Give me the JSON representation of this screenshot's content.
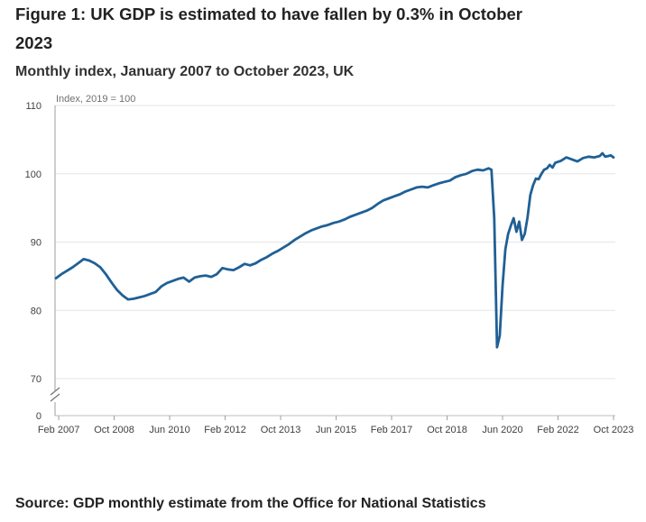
{
  "header": {
    "title": "Figure 1: UK GDP is estimated to have fallen by 0.3% in October 2023",
    "subtitle": "Monthly index, January 2007 to October 2023, UK"
  },
  "footer": {
    "source": "Source: GDP monthly estimate from the Office for National Statistics"
  },
  "chart_data": {
    "type": "line",
    "title": "Figure 1: UK GDP is estimated to have fallen by 0.3% in October 2023",
    "subtitle": "Monthly index, January 2007 to October 2023, UK",
    "ylabel": "Index, 2019 = 100",
    "xlabel": "",
    "y_ticks": [
      0,
      70,
      80,
      90,
      100,
      110
    ],
    "ylim": [
      70,
      110
    ],
    "y_axis_break": true,
    "x_start": "Jan 2007",
    "x_end": "Oct 2023",
    "x_ticks": [
      {
        "label": "Feb 2007",
        "date": "2007-02"
      },
      {
        "label": "Oct 2008",
        "date": "2008-10"
      },
      {
        "label": "Jun 2010",
        "date": "2010-06"
      },
      {
        "label": "Feb 2012",
        "date": "2012-02"
      },
      {
        "label": "Oct 2013",
        "date": "2013-10"
      },
      {
        "label": "Jun 2015",
        "date": "2015-06"
      },
      {
        "label": "Feb 2017",
        "date": "2017-02"
      },
      {
        "label": "Oct 2018",
        "date": "2018-10"
      },
      {
        "label": "Jun 2020",
        "date": "2020-06"
      },
      {
        "label": "Feb 2022",
        "date": "2022-02"
      },
      {
        "label": "Oct 2023",
        "date": "2023-10"
      }
    ],
    "grid": true,
    "legend": "none",
    "series": [
      {
        "color": "#206095",
        "points": [
          {
            "x": "2007-01",
            "y": 84.7
          },
          {
            "x": "2007-03",
            "y": 85.3
          },
          {
            "x": "2007-05",
            "y": 85.8
          },
          {
            "x": "2007-07",
            "y": 86.3
          },
          {
            "x": "2007-09",
            "y": 86.9
          },
          {
            "x": "2007-11",
            "y": 87.5
          },
          {
            "x": "2008-01",
            "y": 87.3
          },
          {
            "x": "2008-03",
            "y": 86.9
          },
          {
            "x": "2008-05",
            "y": 86.3
          },
          {
            "x": "2008-07",
            "y": 85.3
          },
          {
            "x": "2008-09",
            "y": 84.1
          },
          {
            "x": "2008-11",
            "y": 83.0
          },
          {
            "x": "2009-01",
            "y": 82.2
          },
          {
            "x": "2009-03",
            "y": 81.6
          },
          {
            "x": "2009-05",
            "y": 81.7
          },
          {
            "x": "2009-07",
            "y": 81.9
          },
          {
            "x": "2009-09",
            "y": 82.1
          },
          {
            "x": "2009-11",
            "y": 82.4
          },
          {
            "x": "2010-01",
            "y": 82.7
          },
          {
            "x": "2010-03",
            "y": 83.5
          },
          {
            "x": "2010-05",
            "y": 84.0
          },
          {
            "x": "2010-07",
            "y": 84.3
          },
          {
            "x": "2010-09",
            "y": 84.6
          },
          {
            "x": "2010-11",
            "y": 84.8
          },
          {
            "x": "2011-01",
            "y": 84.2
          },
          {
            "x": "2011-03",
            "y": 84.8
          },
          {
            "x": "2011-05",
            "y": 85.0
          },
          {
            "x": "2011-07",
            "y": 85.1
          },
          {
            "x": "2011-09",
            "y": 84.9
          },
          {
            "x": "2011-11",
            "y": 85.3
          },
          {
            "x": "2012-01",
            "y": 86.2
          },
          {
            "x": "2012-03",
            "y": 86.0
          },
          {
            "x": "2012-05",
            "y": 85.9
          },
          {
            "x": "2012-07",
            "y": 86.3
          },
          {
            "x": "2012-09",
            "y": 86.8
          },
          {
            "x": "2012-11",
            "y": 86.6
          },
          {
            "x": "2013-01",
            "y": 86.9
          },
          {
            "x": "2013-03",
            "y": 87.4
          },
          {
            "x": "2013-05",
            "y": 87.8
          },
          {
            "x": "2013-07",
            "y": 88.3
          },
          {
            "x": "2013-09",
            "y": 88.7
          },
          {
            "x": "2013-11",
            "y": 89.2
          },
          {
            "x": "2014-01",
            "y": 89.7
          },
          {
            "x": "2014-03",
            "y": 90.3
          },
          {
            "x": "2014-05",
            "y": 90.8
          },
          {
            "x": "2014-07",
            "y": 91.3
          },
          {
            "x": "2014-09",
            "y": 91.7
          },
          {
            "x": "2014-11",
            "y": 92.0
          },
          {
            "x": "2015-01",
            "y": 92.3
          },
          {
            "x": "2015-03",
            "y": 92.5
          },
          {
            "x": "2015-05",
            "y": 92.8
          },
          {
            "x": "2015-07",
            "y": 93.0
          },
          {
            "x": "2015-09",
            "y": 93.3
          },
          {
            "x": "2015-11",
            "y": 93.7
          },
          {
            "x": "2016-01",
            "y": 94.0
          },
          {
            "x": "2016-03",
            "y": 94.3
          },
          {
            "x": "2016-05",
            "y": 94.6
          },
          {
            "x": "2016-07",
            "y": 95.0
          },
          {
            "x": "2016-09",
            "y": 95.6
          },
          {
            "x": "2016-11",
            "y": 96.1
          },
          {
            "x": "2017-01",
            "y": 96.4
          },
          {
            "x": "2017-03",
            "y": 96.7
          },
          {
            "x": "2017-05",
            "y": 97.0
          },
          {
            "x": "2017-07",
            "y": 97.4
          },
          {
            "x": "2017-09",
            "y": 97.7
          },
          {
            "x": "2017-11",
            "y": 98.0
          },
          {
            "x": "2018-01",
            "y": 98.1
          },
          {
            "x": "2018-03",
            "y": 98.0
          },
          {
            "x": "2018-05",
            "y": 98.3
          },
          {
            "x": "2018-07",
            "y": 98.6
          },
          {
            "x": "2018-09",
            "y": 98.8
          },
          {
            "x": "2018-11",
            "y": 99.0
          },
          {
            "x": "2019-01",
            "y": 99.5
          },
          {
            "x": "2019-03",
            "y": 99.8
          },
          {
            "x": "2019-05",
            "y": 100.0
          },
          {
            "x": "2019-07",
            "y": 100.4
          },
          {
            "x": "2019-09",
            "y": 100.6
          },
          {
            "x": "2019-11",
            "y": 100.5
          },
          {
            "x": "2020-01",
            "y": 100.8
          },
          {
            "x": "2020-02",
            "y": 100.6
          },
          {
            "x": "2020-03",
            "y": 93.5
          },
          {
            "x": "2020-04",
            "y": 74.6
          },
          {
            "x": "2020-05",
            "y": 76.3
          },
          {
            "x": "2020-06",
            "y": 83.6
          },
          {
            "x": "2020-07",
            "y": 88.9
          },
          {
            "x": "2020-08",
            "y": 91.2
          },
          {
            "x": "2020-09",
            "y": 92.4
          },
          {
            "x": "2020-10",
            "y": 93.5
          },
          {
            "x": "2020-11",
            "y": 91.5
          },
          {
            "x": "2020-12",
            "y": 93.0
          },
          {
            "x": "2021-01",
            "y": 90.3
          },
          {
            "x": "2021-02",
            "y": 91.2
          },
          {
            "x": "2021-03",
            "y": 93.6
          },
          {
            "x": "2021-04",
            "y": 96.9
          },
          {
            "x": "2021-05",
            "y": 98.3
          },
          {
            "x": "2021-06",
            "y": 99.3
          },
          {
            "x": "2021-07",
            "y": 99.2
          },
          {
            "x": "2021-08",
            "y": 100.0
          },
          {
            "x": "2021-09",
            "y": 100.6
          },
          {
            "x": "2021-10",
            "y": 100.8
          },
          {
            "x": "2021-11",
            "y": 101.3
          },
          {
            "x": "2021-12",
            "y": 100.9
          },
          {
            "x": "2022-01",
            "y": 101.6
          },
          {
            "x": "2022-03",
            "y": 101.9
          },
          {
            "x": "2022-05",
            "y": 102.4
          },
          {
            "x": "2022-07",
            "y": 102.1
          },
          {
            "x": "2022-09",
            "y": 101.8
          },
          {
            "x": "2022-11",
            "y": 102.3
          },
          {
            "x": "2023-01",
            "y": 102.5
          },
          {
            "x": "2023-03",
            "y": 102.4
          },
          {
            "x": "2023-05",
            "y": 102.6
          },
          {
            "x": "2023-06",
            "y": 103.0
          },
          {
            "x": "2023-07",
            "y": 102.5
          },
          {
            "x": "2023-08",
            "y": 102.6
          },
          {
            "x": "2023-09",
            "y": 102.7
          },
          {
            "x": "2023-10",
            "y": 102.4
          }
        ]
      }
    ]
  }
}
